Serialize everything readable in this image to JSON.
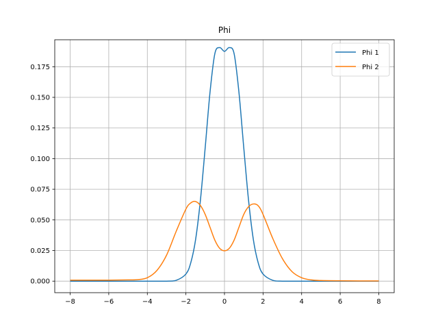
{
  "chart_data": {
    "type": "line",
    "title": "Phi",
    "xlabel": "",
    "ylabel": "",
    "xlim": [
      -8.8,
      8.8
    ],
    "ylim": [
      -0.0094,
      0.197
    ],
    "xticks": [
      -8,
      -6,
      -4,
      -2,
      0,
      2,
      4,
      6,
      8
    ],
    "xtick_labels": [
      "−8",
      "−6",
      "−4",
      "−2",
      "0",
      "2",
      "4",
      "6",
      "8"
    ],
    "yticks": [
      0.0,
      0.025,
      0.05,
      0.075,
      0.1,
      0.125,
      0.15,
      0.175
    ],
    "ytick_labels": [
      "0.000",
      "0.025",
      "0.050",
      "0.075",
      "0.100",
      "0.125",
      "0.150",
      "0.175"
    ],
    "grid": true,
    "legend_position": "top-right",
    "series": [
      {
        "name": "Phi 1",
        "color": "#1f77b4",
        "x": [
          -8,
          -6,
          -4,
          -3,
          -2.5,
          -2,
          -1.75,
          -1.5,
          -1.25,
          -1,
          -0.75,
          -0.5,
          -0.25,
          0,
          0.25,
          0.5,
          0.75,
          1,
          1.25,
          1.5,
          1.75,
          2,
          2.5,
          3,
          4,
          6,
          8
        ],
        "y": [
          0.0,
          0.0,
          0.0,
          0.0,
          0.0007,
          0.0058,
          0.0149,
          0.0337,
          0.0657,
          0.1089,
          0.1541,
          0.1856,
          0.1906,
          0.1875,
          0.1906,
          0.1856,
          0.1541,
          0.1089,
          0.0657,
          0.0337,
          0.0149,
          0.0058,
          0.0007,
          0.0,
          0.0,
          0.0,
          0.0
        ]
      },
      {
        "name": "Phi 2",
        "color": "#ff7f0e",
        "x": [
          -8,
          -7,
          -6,
          -5,
          -4.5,
          -4,
          -3.5,
          -3,
          -2.5,
          -2,
          -1.75,
          -1.5,
          -1.25,
          -1,
          -0.75,
          -0.5,
          -0.25,
          0,
          0.25,
          0.5,
          0.75,
          1,
          1.25,
          1.5,
          1.75,
          2,
          2.5,
          3,
          3.5,
          4,
          4.5,
          5,
          6,
          7,
          8
        ],
        "y": [
          0.0008,
          0.0008,
          0.0008,
          0.001,
          0.0012,
          0.0028,
          0.0088,
          0.0213,
          0.0408,
          0.0588,
          0.0638,
          0.065,
          0.0618,
          0.0545,
          0.044,
          0.0335,
          0.0268,
          0.0248,
          0.0268,
          0.0335,
          0.044,
          0.0545,
          0.0608,
          0.063,
          0.0615,
          0.0545,
          0.035,
          0.0185,
          0.0078,
          0.0028,
          0.001,
          0.0005,
          0.0003,
          0.0002,
          0.0002
        ]
      }
    ]
  }
}
